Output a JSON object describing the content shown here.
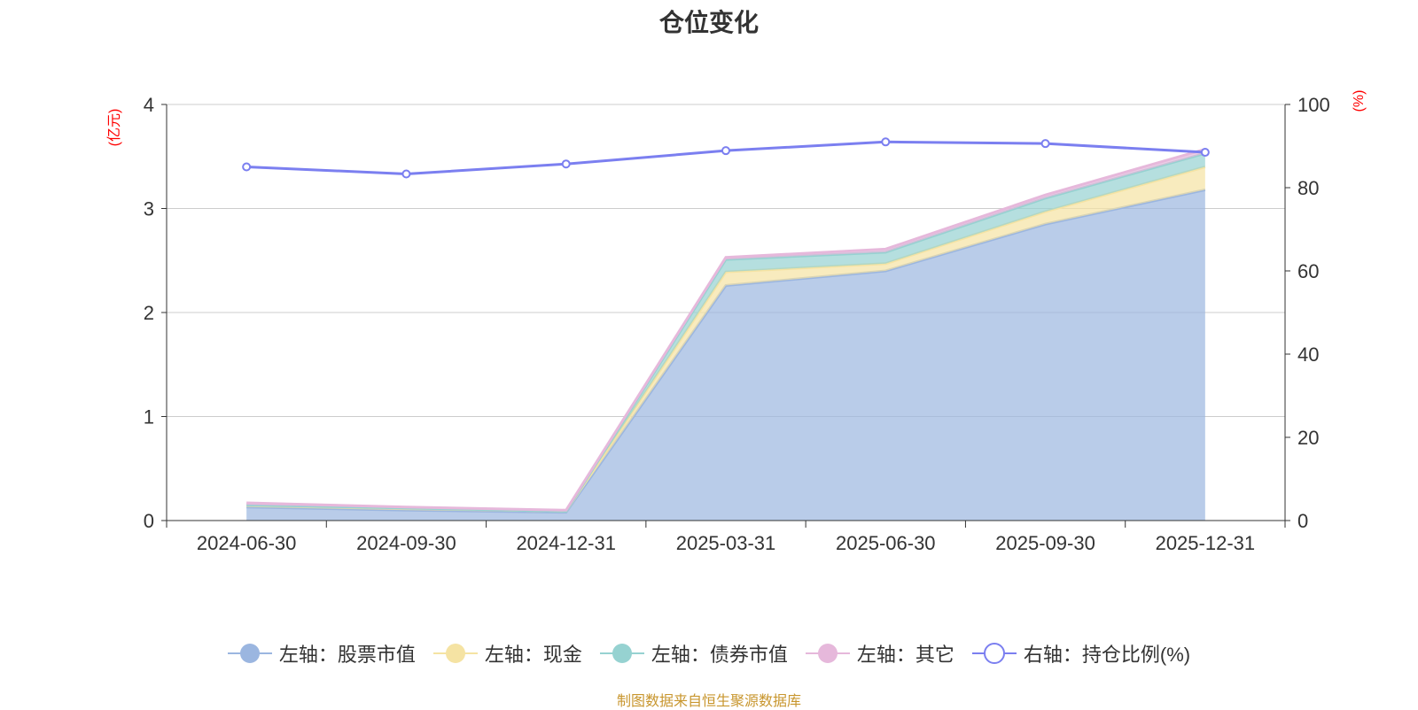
{
  "title": "仓位变化",
  "source_note": "制图数据来自恒生聚源数据库",
  "colors": {
    "stock": "#9bb6e0",
    "cash": "#f5e3a3",
    "bond": "#96d2d1",
    "other": "#e6b8db",
    "ratio": "#7b7ff0",
    "axis_unit": "#ff0000",
    "grid": "#cccccc",
    "axis": "#333333",
    "text": "#333333"
  },
  "legend": [
    {
      "key": "stock",
      "label": "左轴：股票市值",
      "icon": "filled-circle"
    },
    {
      "key": "cash",
      "label": "左轴：现金",
      "icon": "filled-circle"
    },
    {
      "key": "bond",
      "label": "左轴：债券市值",
      "icon": "filled-circle"
    },
    {
      "key": "other",
      "label": "左轴：其它",
      "icon": "filled-circle"
    },
    {
      "key": "ratio",
      "label": "右轴：持仓比例(%)",
      "icon": "hollow-circle"
    }
  ],
  "chart_data": {
    "type": "area",
    "title": "仓位变化",
    "categories": [
      "2024-06-30",
      "2024-09-30",
      "2024-12-31",
      "2025-03-31",
      "2025-06-30",
      "2025-09-30",
      "2025-12-31"
    ],
    "y_left": {
      "unit_label": "(亿元)",
      "min": 0,
      "max": 4,
      "ticks": [
        0,
        1,
        2,
        3,
        4
      ]
    },
    "y_right": {
      "unit_label": "(%)",
      "min": 0,
      "max": 100,
      "ticks": [
        0,
        20,
        40,
        60,
        80,
        100
      ]
    },
    "stacked": true,
    "grid": true,
    "legend_position": "bottom",
    "series": [
      {
        "key": "stock",
        "name": "左轴：股票市值",
        "axis": "left",
        "values": [
          0.13,
          0.1,
          0.08,
          2.26,
          2.4,
          2.85,
          3.18
        ]
      },
      {
        "key": "cash",
        "name": "左轴：现金",
        "axis": "left",
        "values": [
          0.02,
          0.02,
          0.01,
          0.13,
          0.07,
          0.12,
          0.22
        ]
      },
      {
        "key": "bond",
        "name": "左轴：债券市值",
        "axis": "left",
        "values": [
          0.0,
          0.0,
          0.0,
          0.12,
          0.11,
          0.13,
          0.13
        ]
      },
      {
        "key": "other",
        "name": "左轴：其它",
        "axis": "left",
        "values": [
          0.02,
          0.01,
          0.01,
          0.02,
          0.03,
          0.03,
          0.04
        ]
      },
      {
        "key": "ratio",
        "name": "右轴：持仓比例(%)",
        "axis": "right",
        "type": "line",
        "values": [
          85.0,
          83.3,
          85.7,
          88.9,
          91.0,
          90.6,
          88.5
        ]
      }
    ]
  }
}
